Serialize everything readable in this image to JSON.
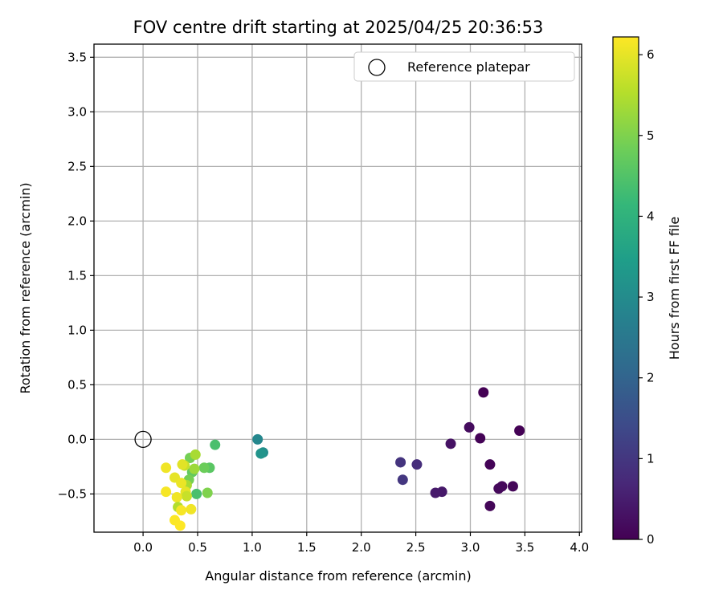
{
  "chart_data": {
    "type": "scatter",
    "title": "FOV centre drift starting at 2025/04/25 20:36:53",
    "xlabel": "Angular distance from reference (arcmin)",
    "ylabel": "Rotation from reference (arcmin)",
    "xlim": [
      -0.45,
      4.02
    ],
    "ylim": [
      -0.85,
      3.62
    ],
    "xticks": [
      0.0,
      0.5,
      1.0,
      1.5,
      2.0,
      2.5,
      3.0,
      3.5,
      4.0
    ],
    "xtick_labels": [
      "0.0",
      "0.5",
      "1.0",
      "1.5",
      "2.0",
      "2.5",
      "3.0",
      "3.5",
      "4.0"
    ],
    "yticks": [
      -0.5,
      0.0,
      0.5,
      1.0,
      1.5,
      2.0,
      2.5,
      3.0,
      3.5
    ],
    "ytick_labels": [
      "−0.5",
      "0.0",
      "0.5",
      "1.0",
      "1.5",
      "2.0",
      "2.5",
      "3.0",
      "3.5"
    ],
    "grid": true,
    "legend": {
      "placement": "top-right",
      "entries": [
        "Reference platepar"
      ]
    },
    "reference_point": {
      "x": 0.0,
      "y": 0.0
    },
    "colorbar": {
      "label": "Hours from first FF file",
      "min": 0,
      "max": 6.22,
      "ticks": [
        0,
        1,
        2,
        3,
        4,
        5,
        6
      ],
      "tick_labels": [
        "0",
        "1",
        "2",
        "3",
        "4",
        "5",
        "6"
      ],
      "colormap": "viridis",
      "stops": [
        "#440154",
        "#482878",
        "#3e4989",
        "#31688e",
        "#26828e",
        "#1f9e89",
        "#35b779",
        "#6ece58",
        "#b5de2b",
        "#fde725"
      ]
    },
    "points": [
      {
        "x": 3.12,
        "y": 0.43,
        "c": 0.0
      },
      {
        "x": 3.45,
        "y": 0.08,
        "c": 0.02
      },
      {
        "x": 3.09,
        "y": 0.01,
        "c": 0.04
      },
      {
        "x": 3.18,
        "y": -0.23,
        "c": 0.06
      },
      {
        "x": 3.18,
        "y": -0.61,
        "c": 0.08
      },
      {
        "x": 3.39,
        "y": -0.43,
        "c": 0.1
      },
      {
        "x": 3.29,
        "y": -0.43,
        "c": 0.12
      },
      {
        "x": 3.26,
        "y": -0.45,
        "c": 0.14
      },
      {
        "x": 2.99,
        "y": 0.11,
        "c": 0.2
      },
      {
        "x": 2.82,
        "y": -0.04,
        "c": 0.3
      },
      {
        "x": 2.74,
        "y": -0.48,
        "c": 0.4
      },
      {
        "x": 2.68,
        "y": -0.49,
        "c": 0.45
      },
      {
        "x": 2.51,
        "y": -0.23,
        "c": 0.8
      },
      {
        "x": 2.36,
        "y": -0.21,
        "c": 0.95
      },
      {
        "x": 2.38,
        "y": -0.37,
        "c": 1.0
      },
      {
        "x": 1.05,
        "y": 0.0,
        "c": 2.9
      },
      {
        "x": 1.1,
        "y": -0.12,
        "c": 3.05
      },
      {
        "x": 1.08,
        "y": -0.13,
        "c": 3.2
      },
      {
        "x": 0.66,
        "y": -0.05,
        "c": 4.4
      },
      {
        "x": 0.61,
        "y": -0.26,
        "c": 4.6
      },
      {
        "x": 0.56,
        "y": -0.26,
        "c": 4.8
      },
      {
        "x": 0.49,
        "y": -0.5,
        "c": 4.4
      },
      {
        "x": 0.59,
        "y": -0.49,
        "c": 5.0
      },
      {
        "x": 0.43,
        "y": -0.17,
        "c": 4.9
      },
      {
        "x": 0.45,
        "y": -0.3,
        "c": 4.7
      },
      {
        "x": 0.42,
        "y": -0.37,
        "c": 4.9
      },
      {
        "x": 0.48,
        "y": -0.14,
        "c": 5.4
      },
      {
        "x": 0.47,
        "y": -0.27,
        "c": 5.3
      },
      {
        "x": 0.4,
        "y": -0.42,
        "c": 5.4
      },
      {
        "x": 0.38,
        "y": -0.24,
        "c": 5.7
      },
      {
        "x": 0.36,
        "y": -0.23,
        "c": 5.95
      },
      {
        "x": 0.21,
        "y": -0.26,
        "c": 6.1
      },
      {
        "x": 0.29,
        "y": -0.35,
        "c": 6.0
      },
      {
        "x": 0.35,
        "y": -0.4,
        "c": 6.05
      },
      {
        "x": 0.21,
        "y": -0.48,
        "c": 6.15
      },
      {
        "x": 0.39,
        "y": -0.48,
        "c": 6.0
      },
      {
        "x": 0.4,
        "y": -0.52,
        "c": 5.7
      },
      {
        "x": 0.31,
        "y": -0.53,
        "c": 6.1
      },
      {
        "x": 0.32,
        "y": -0.62,
        "c": 5.5
      },
      {
        "x": 0.35,
        "y": -0.65,
        "c": 6.15
      },
      {
        "x": 0.44,
        "y": -0.64,
        "c": 6.1
      },
      {
        "x": 0.29,
        "y": -0.74,
        "c": 6.2
      },
      {
        "x": 0.34,
        "y": -0.79,
        "c": 6.22
      }
    ]
  }
}
